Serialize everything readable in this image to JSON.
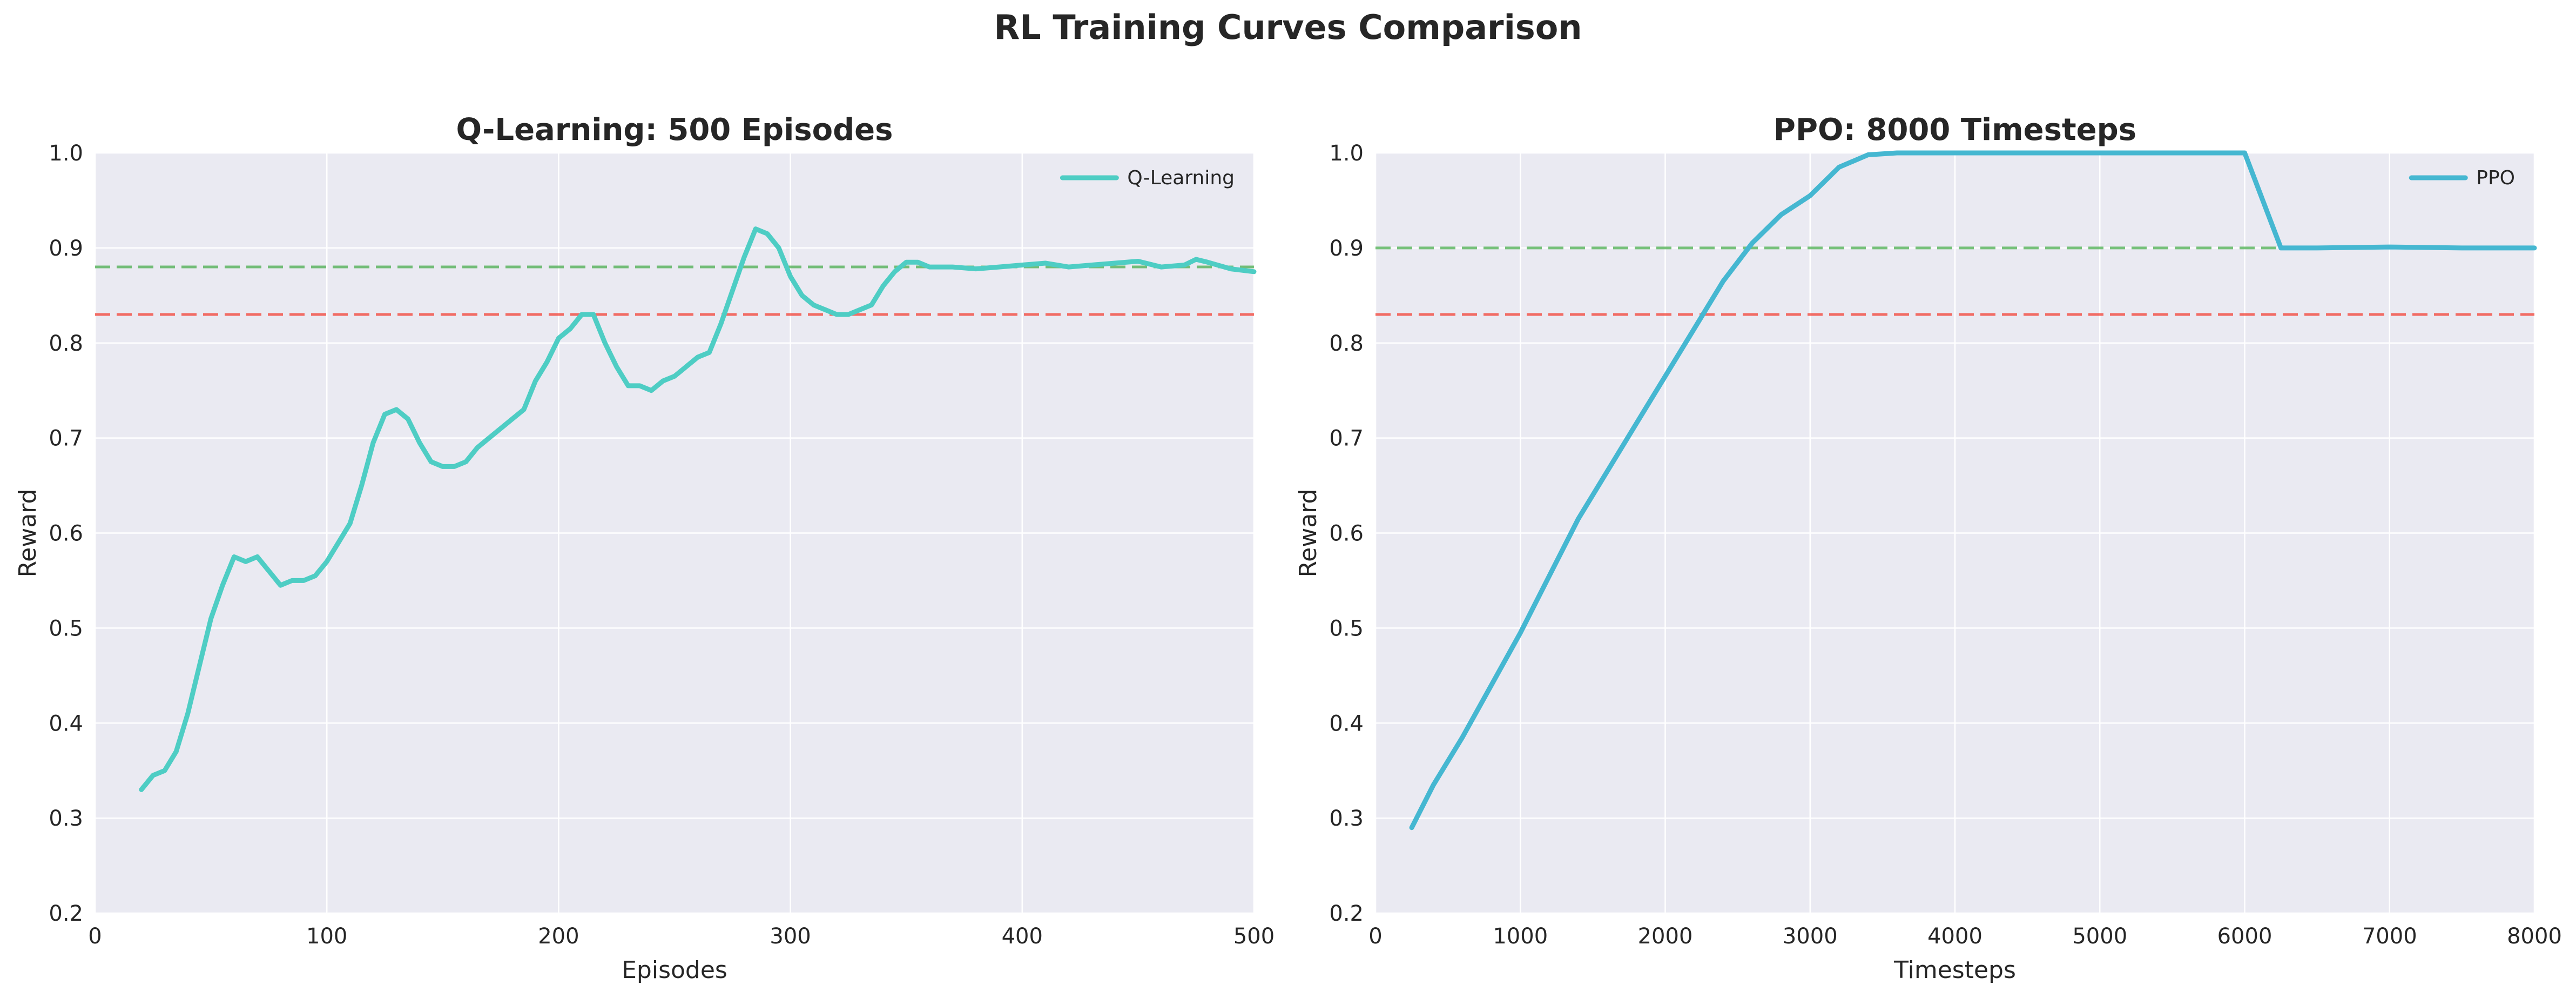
{
  "figure": {
    "title": "RL Training Curves Comparison"
  },
  "chart_data": [
    {
      "type": "line",
      "title": "Q-Learning: 500 Episodes",
      "xlabel": "Episodes",
      "ylabel": "Reward",
      "xlim": [
        0,
        500
      ],
      "ylim": [
        0.2,
        1.0
      ],
      "xticks": [
        "0",
        "100",
        "200",
        "300",
        "400",
        "500"
      ],
      "yticks": [
        "0.2",
        "0.3",
        "0.4",
        "0.5",
        "0.6",
        "0.7",
        "0.8",
        "0.9",
        "1.0"
      ],
      "grid": true,
      "legend_position": "top-right",
      "reference_lines": [
        {
          "y": 0.88,
          "color": "#4caf50",
          "style": "dashed"
        },
        {
          "y": 0.83,
          "color": "#f44336",
          "style": "dashed"
        }
      ],
      "series": [
        {
          "name": "Q-Learning",
          "color": "#4ecdc4",
          "x": [
            20,
            25,
            30,
            35,
            40,
            45,
            50,
            55,
            60,
            65,
            70,
            75,
            80,
            85,
            90,
            95,
            100,
            105,
            110,
            115,
            120,
            125,
            130,
            135,
            140,
            145,
            150,
            155,
            160,
            165,
            170,
            175,
            180,
            185,
            190,
            195,
            200,
            205,
            210,
            215,
            220,
            225,
            230,
            235,
            240,
            245,
            250,
            255,
            260,
            265,
            270,
            275,
            280,
            285,
            290,
            295,
            300,
            305,
            310,
            315,
            320,
            325,
            330,
            335,
            340,
            345,
            350,
            355,
            360,
            370,
            380,
            390,
            400,
            410,
            420,
            430,
            440,
            450,
            460,
            470,
            475,
            480,
            490,
            500
          ],
          "y": [
            0.33,
            0.345,
            0.35,
            0.37,
            0.41,
            0.46,
            0.51,
            0.545,
            0.575,
            0.57,
            0.575,
            0.56,
            0.545,
            0.55,
            0.55,
            0.555,
            0.57,
            0.59,
            0.61,
            0.65,
            0.695,
            0.725,
            0.73,
            0.72,
            0.695,
            0.675,
            0.67,
            0.67,
            0.675,
            0.69,
            0.7,
            0.71,
            0.72,
            0.73,
            0.76,
            0.78,
            0.805,
            0.815,
            0.83,
            0.83,
            0.8,
            0.775,
            0.755,
            0.755,
            0.75,
            0.76,
            0.765,
            0.775,
            0.785,
            0.79,
            0.82,
            0.855,
            0.89,
            0.92,
            0.915,
            0.9,
            0.87,
            0.85,
            0.84,
            0.835,
            0.83,
            0.83,
            0.835,
            0.84,
            0.86,
            0.875,
            0.885,
            0.885,
            0.88,
            0.88,
            0.878,
            0.88,
            0.882,
            0.884,
            0.88,
            0.882,
            0.884,
            0.886,
            0.88,
            0.882,
            0.888,
            0.885,
            0.878,
            0.875
          ]
        }
      ]
    },
    {
      "type": "line",
      "title": "PPO: 8000 Timesteps",
      "xlabel": "Timesteps",
      "ylabel": "Reward",
      "xlim": [
        0,
        8000
      ],
      "ylim": [
        0.2,
        1.0
      ],
      "xticks": [
        "0",
        "1000",
        "2000",
        "3000",
        "4000",
        "5000",
        "6000",
        "7000",
        "8000"
      ],
      "yticks": [
        "0.2",
        "0.3",
        "0.4",
        "0.5",
        "0.6",
        "0.7",
        "0.8",
        "0.9",
        "1.0"
      ],
      "grid": true,
      "legend_position": "top-right",
      "reference_lines": [
        {
          "y": 0.9,
          "color": "#4caf50",
          "style": "dashed"
        },
        {
          "y": 0.83,
          "color": "#f44336",
          "style": "dashed"
        }
      ],
      "series": [
        {
          "name": "PPO",
          "color": "#45b7d1",
          "x": [
            250,
            400,
            600,
            800,
            1000,
            1200,
            1400,
            1600,
            1800,
            2000,
            2200,
            2400,
            2600,
            2800,
            3000,
            3200,
            3400,
            3600,
            4000,
            5000,
            6000,
            6250,
            6500,
            7000,
            7500,
            8000
          ],
          "y": [
            0.29,
            0.335,
            0.385,
            0.44,
            0.495,
            0.555,
            0.615,
            0.665,
            0.715,
            0.765,
            0.815,
            0.865,
            0.905,
            0.935,
            0.955,
            0.985,
            0.998,
            1.0,
            1.0,
            1.0,
            1.0,
            0.9,
            0.9,
            0.901,
            0.9,
            0.9
          ]
        }
      ]
    }
  ]
}
